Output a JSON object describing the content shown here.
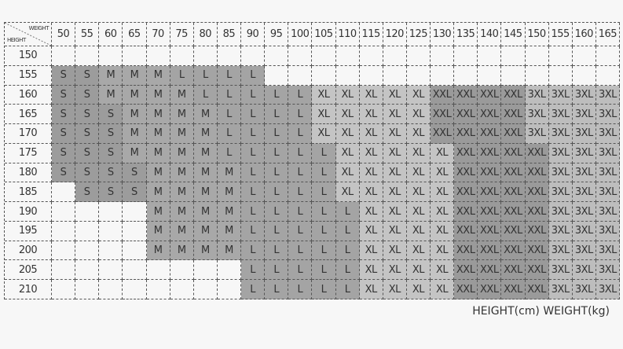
{
  "corner": {
    "weight": "WEIGHT",
    "height": "HEIGHT"
  },
  "table": {
    "weights": [
      50,
      55,
      60,
      65,
      70,
      75,
      80,
      85,
      90,
      95,
      100,
      105,
      110,
      115,
      120,
      125,
      130,
      135,
      140,
      145,
      150,
      155,
      160,
      165
    ],
    "rows": [
      {
        "height": 150,
        "sizes": [
          null,
          null,
          null,
          null,
          null,
          null,
          null,
          null,
          null,
          null,
          null,
          null,
          null,
          null,
          null,
          null,
          null,
          null,
          null,
          null,
          null,
          null,
          null,
          null
        ]
      },
      {
        "height": 155,
        "sizes": [
          "S",
          "S",
          "M",
          "M",
          "M",
          "L",
          "L",
          "L",
          "L",
          null,
          null,
          null,
          null,
          null,
          null,
          null,
          null,
          null,
          null,
          null,
          null,
          null,
          null,
          null
        ]
      },
      {
        "height": 160,
        "sizes": [
          "S",
          "S",
          "M",
          "M",
          "M",
          "M",
          "L",
          "L",
          "L",
          "L",
          "L",
          "XL",
          "XL",
          "XL",
          "XL",
          "XL",
          "XXL",
          "XXL",
          "XXL",
          "XXL",
          "3XL",
          "3XL",
          "3XL",
          "3XL"
        ]
      },
      {
        "height": 165,
        "sizes": [
          "S",
          "S",
          "S",
          "M",
          "M",
          "M",
          "M",
          "L",
          "L",
          "L",
          "L",
          "XL",
          "XL",
          "XL",
          "XL",
          "XL",
          "XXL",
          "XXL",
          "XXL",
          "XXL",
          "3XL",
          "3XL",
          "3XL",
          "3XL"
        ]
      },
      {
        "height": 170,
        "sizes": [
          "S",
          "S",
          "S",
          "M",
          "M",
          "M",
          "M",
          "L",
          "L",
          "L",
          "L",
          "XL",
          "XL",
          "XL",
          "XL",
          "XL",
          "XXL",
          "XXL",
          "XXL",
          "XXL",
          "3XL",
          "3XL",
          "3XL",
          "3XL"
        ]
      },
      {
        "height": 175,
        "sizes": [
          "S",
          "S",
          "S",
          "M",
          "M",
          "M",
          "M",
          "L",
          "L",
          "L",
          "L",
          "L",
          "XL",
          "XL",
          "XL",
          "XL",
          "XL",
          "XXL",
          "XXL",
          "XXL",
          "XXL",
          "3XL",
          "3XL",
          "3XL"
        ]
      },
      {
        "height": 180,
        "sizes": [
          "S",
          "S",
          "S",
          "S",
          "M",
          "M",
          "M",
          "M",
          "L",
          "L",
          "L",
          "L",
          "XL",
          "XL",
          "XL",
          "XL",
          "XL",
          "XXL",
          "XXL",
          "XXL",
          "XXL",
          "3XL",
          "3XL",
          "3XL"
        ]
      },
      {
        "height": 185,
        "sizes": [
          null,
          "S",
          "S",
          "S",
          "M",
          "M",
          "M",
          "M",
          "L",
          "L",
          "L",
          "L",
          "XL",
          "XL",
          "XL",
          "XL",
          "XL",
          "XXL",
          "XXL",
          "XXL",
          "XXL",
          "3XL",
          "3XL",
          "3XL"
        ]
      },
      {
        "height": 190,
        "sizes": [
          null,
          null,
          null,
          null,
          "M",
          "M",
          "M",
          "M",
          "L",
          "L",
          "L",
          "L",
          "L",
          "XL",
          "XL",
          "XL",
          "XL",
          "XXL",
          "XXL",
          "XXL",
          "XXL",
          "3XL",
          "3XL",
          "3XL"
        ]
      },
      {
        "height": 195,
        "sizes": [
          null,
          null,
          null,
          null,
          "M",
          "M",
          "M",
          "M",
          "L",
          "L",
          "L",
          "L",
          "L",
          "XL",
          "XL",
          "XL",
          "XL",
          "XXL",
          "XXL",
          "XXL",
          "XXL",
          "3XL",
          "3XL",
          "3XL"
        ]
      },
      {
        "height": 200,
        "sizes": [
          null,
          null,
          null,
          null,
          "M",
          "M",
          "M",
          "M",
          "L",
          "L",
          "L",
          "L",
          "L",
          "XL",
          "XL",
          "XL",
          "XL",
          "XXL",
          "XXL",
          "XXL",
          "XXL",
          "3XL",
          "3XL",
          "3XL"
        ]
      },
      {
        "height": 205,
        "sizes": [
          null,
          null,
          null,
          null,
          null,
          null,
          null,
          null,
          "L",
          "L",
          "L",
          "L",
          "L",
          "XL",
          "XL",
          "XL",
          "XL",
          "XXL",
          "XXL",
          "XXL",
          "XXL",
          "3XL",
          "3XL",
          "3XL"
        ]
      },
      {
        "height": 210,
        "sizes": [
          null,
          null,
          null,
          null,
          null,
          null,
          null,
          null,
          "L",
          "L",
          "L",
          "L",
          "L",
          "XL",
          "XL",
          "XL",
          "XL",
          "XXL",
          "XXL",
          "XXL",
          "XXL",
          "3XL",
          "3XL",
          "3XL"
        ]
      }
    ]
  },
  "footer": "HEIGHT(cm) WEIGHT(kg)"
}
